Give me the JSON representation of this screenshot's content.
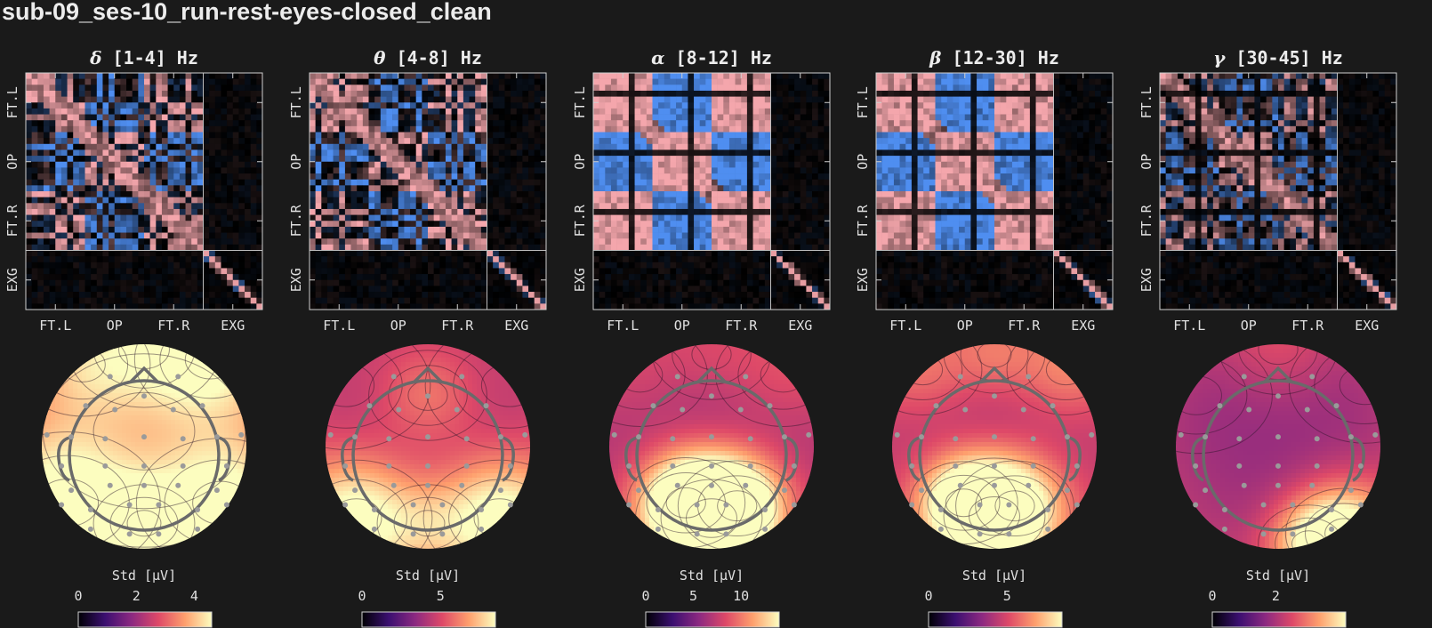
{
  "title": "sub-09_ses-10_run-rest-eyes-closed_clean",
  "chart_data": {
    "type": "heatmap",
    "channel_groups": [
      "FT.L",
      "OP",
      "FT.R",
      "EXG"
    ],
    "panels": [
      {
        "symbol": "δ",
        "band": "[1-4] Hz",
        "colorbar_label": "Std [μV]",
        "colorbar_ticks": [
          "0",
          "2",
          "4"
        ],
        "colorbar_range": [
          0,
          4.6
        ]
      },
      {
        "symbol": "θ",
        "band": "[4-8] Hz",
        "colorbar_label": "Std [μV]",
        "colorbar_ticks": [
          "0",
          "5"
        ],
        "colorbar_range": [
          0,
          8.5
        ]
      },
      {
        "symbol": "α",
        "band": "[8-12] Hz",
        "colorbar_label": "Std [μV]",
        "colorbar_ticks": [
          "0",
          "5",
          "10"
        ],
        "colorbar_range": [
          0,
          14
        ]
      },
      {
        "symbol": "β",
        "band": "[12-30] Hz",
        "colorbar_label": "Std [μV]",
        "colorbar_ticks": [
          "0",
          "5"
        ],
        "colorbar_range": [
          0,
          8.5
        ]
      },
      {
        "symbol": "γ",
        "band": "[30-45] Hz",
        "colorbar_label": "Std [μV]",
        "colorbar_ticks": [
          "0",
          "2"
        ],
        "colorbar_range": [
          0,
          4.2
        ]
      }
    ],
    "colormap_correlation": [
      "#4f8ef0",
      "#000000",
      "#f4a6ac"
    ],
    "colormap_topomap": [
      "#000004",
      "#3b0f70",
      "#8c2981",
      "#de4968",
      "#fe9f6d",
      "#fcfdbf"
    ]
  }
}
